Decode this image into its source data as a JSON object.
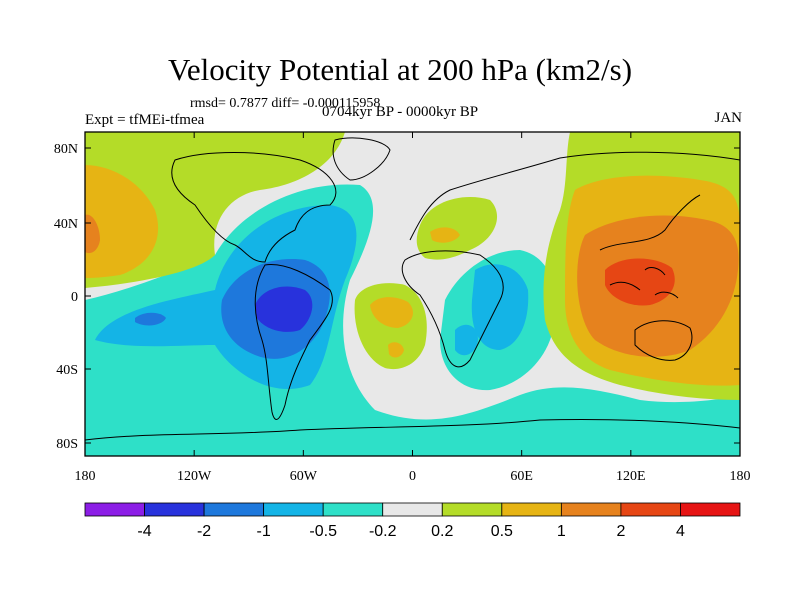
{
  "title": "Velocity Potential at 200 hPa (km2/s)",
  "rmsd_text": "rmsd= 0.7877 diff= -0.000115958",
  "expt_text": "Expt = tfMEi-tfmea",
  "subtitle": "0704kyr BP - 0000kyr BP",
  "month": "JAN",
  "lat_ticks": [
    "80N",
    "40N",
    "0",
    "40S",
    "80S"
  ],
  "lon_ticks": [
    "180",
    "120W",
    "60W",
    "0",
    "60E",
    "120E",
    "180"
  ],
  "colorbar": {
    "colors": [
      "#8c1ee6",
      "#2832dc",
      "#1e78dc",
      "#14b4e6",
      "#2ee0c8",
      "#e8e8e8",
      "#b4dc28",
      "#e6b414",
      "#e6821e",
      "#e64614",
      "#e61414"
    ],
    "labels": [
      "-4",
      "-2",
      "-1",
      "-0.5",
      "-0.2",
      "0.2",
      "0.5",
      "1",
      "2",
      "4"
    ]
  }
}
